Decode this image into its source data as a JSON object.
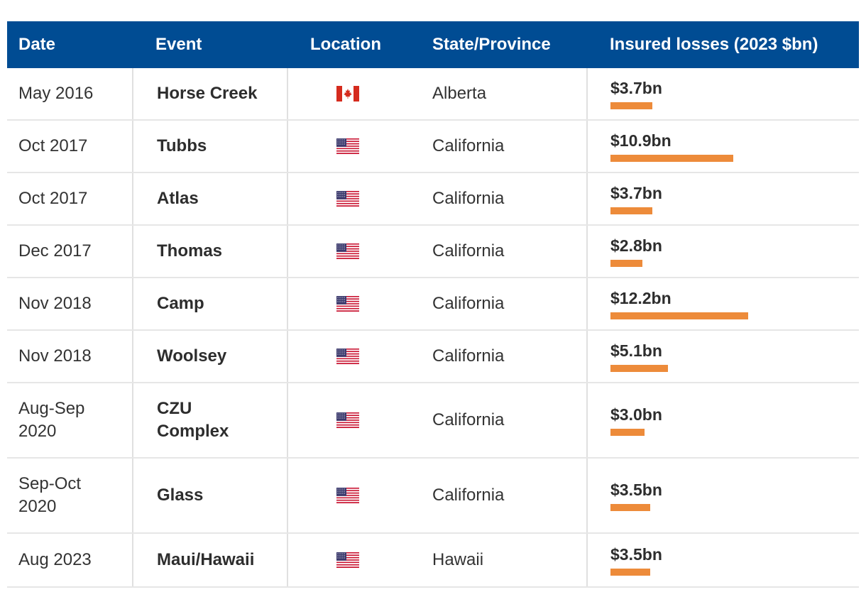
{
  "header": {
    "date": "Date",
    "event": "Event",
    "location": "Location",
    "state": "State/Province",
    "losses": "Insured losses (2023 $bn)"
  },
  "colors": {
    "header_bg": "#004c93",
    "bar": "#ed8b3a"
  },
  "rows": [
    {
      "date": "May 2016",
      "event": "Horse Creek",
      "location": "canada-flag-icon",
      "state": "Alberta",
      "loss_label": "$3.7bn",
      "loss": 3.7
    },
    {
      "date": "Oct 2017",
      "event": "Tubbs",
      "location": "us-flag-icon",
      "state": "California",
      "loss_label": "$10.9bn",
      "loss": 10.9
    },
    {
      "date": "Oct 2017",
      "event": "Atlas",
      "location": "us-flag-icon",
      "state": "California",
      "loss_label": "$3.7bn",
      "loss": 3.7
    },
    {
      "date": "Dec 2017",
      "event": "Thomas",
      "location": "us-flag-icon",
      "state": "California",
      "loss_label": "$2.8bn",
      "loss": 2.8
    },
    {
      "date": "Nov 2018",
      "event": "Camp",
      "location": "us-flag-icon",
      "state": "California",
      "loss_label": "$12.2bn",
      "loss": 12.2
    },
    {
      "date": "Nov 2018",
      "event": "Woolsey",
      "location": "us-flag-icon",
      "state": "California",
      "loss_label": "$5.1bn",
      "loss": 5.1
    },
    {
      "date": "Aug-Sep 2020",
      "event": "CZU Complex",
      "location": "us-flag-icon",
      "state": "California",
      "loss_label": "$3.0bn",
      "loss": 3.0
    },
    {
      "date": "Sep-Oct 2020",
      "event": "Glass",
      "location": "us-flag-icon",
      "state": "California",
      "loss_label": "$3.5bn",
      "loss": 3.5
    },
    {
      "date": "Aug 2023",
      "event": "Maui/Hawaii",
      "location": "us-flag-icon",
      "state": "Hawaii",
      "loss_label": "$3.5bn",
      "loss": 3.5
    }
  ],
  "chart_data": {
    "type": "table",
    "columns": [
      "Date",
      "Event",
      "Location",
      "State/Province",
      "Insured losses (2023 $bn)"
    ],
    "categories": [
      "Horse Creek",
      "Tubbs",
      "Atlas",
      "Thomas",
      "Camp",
      "Woolsey",
      "CZU Complex",
      "Glass",
      "Maui/Hawaii"
    ],
    "values": [
      3.7,
      10.9,
      3.7,
      2.8,
      12.2,
      5.1,
      3.0,
      3.5,
      3.5
    ]
  }
}
